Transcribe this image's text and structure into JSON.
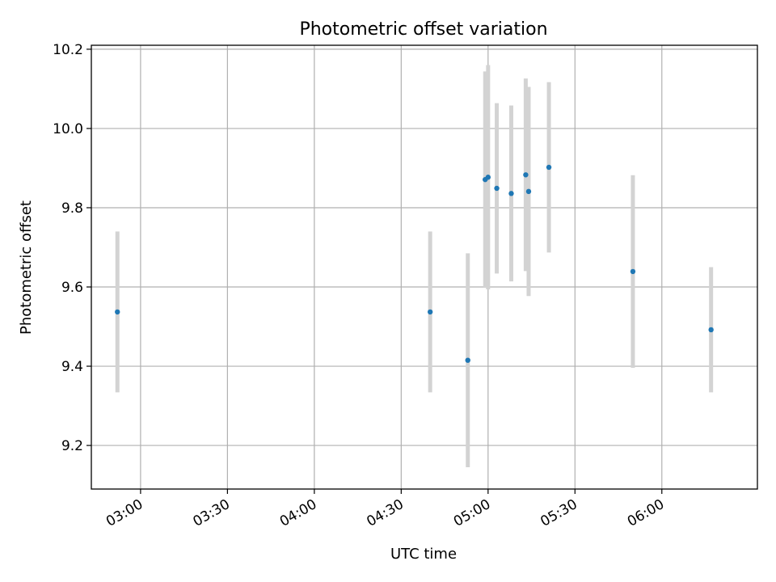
{
  "chart_data": {
    "type": "scatter",
    "title": "Photometric offset variation",
    "xlabel": "UTC time",
    "ylabel": "Photometric offset",
    "x_axis_type": "time",
    "xlim": [
      "02:43",
      "06:33"
    ],
    "ylim": [
      9.09,
      10.21
    ],
    "x_ticks": [
      "03:00",
      "03:30",
      "04:00",
      "04:30",
      "05:00",
      "05:30",
      "06:00"
    ],
    "y_ticks": [
      "9.2",
      "9.4",
      "9.6",
      "9.8",
      "10.0",
      "10.2"
    ],
    "grid": true,
    "legend": false,
    "errorbar_color": "#d3d3d3",
    "marker_color": "#1f77b4",
    "points": [
      {
        "x": "02:52",
        "y": 9.537,
        "yerr": 0.203
      },
      {
        "x": "04:40",
        "y": 9.537,
        "yerr": 0.203
      },
      {
        "x": "04:53",
        "y": 9.415,
        "yerr": 0.27
      },
      {
        "x": "04:59",
        "y": 9.871,
        "yerr": 0.273
      },
      {
        "x": "05:00",
        "y": 9.877,
        "yerr": 0.283
      },
      {
        "x": "05:03",
        "y": 9.849,
        "yerr": 0.215
      },
      {
        "x": "05:08",
        "y": 9.836,
        "yerr": 0.222
      },
      {
        "x": "05:13",
        "y": 9.883,
        "yerr": 0.243
      },
      {
        "x": "05:14",
        "y": 9.841,
        "yerr": 0.264
      },
      {
        "x": "05:21",
        "y": 9.902,
        "yerr": 0.215
      },
      {
        "x": "05:50",
        "y": 9.639,
        "yerr": 0.243
      },
      {
        "x": "06:17",
        "y": 9.492,
        "yerr": 0.158
      }
    ]
  }
}
